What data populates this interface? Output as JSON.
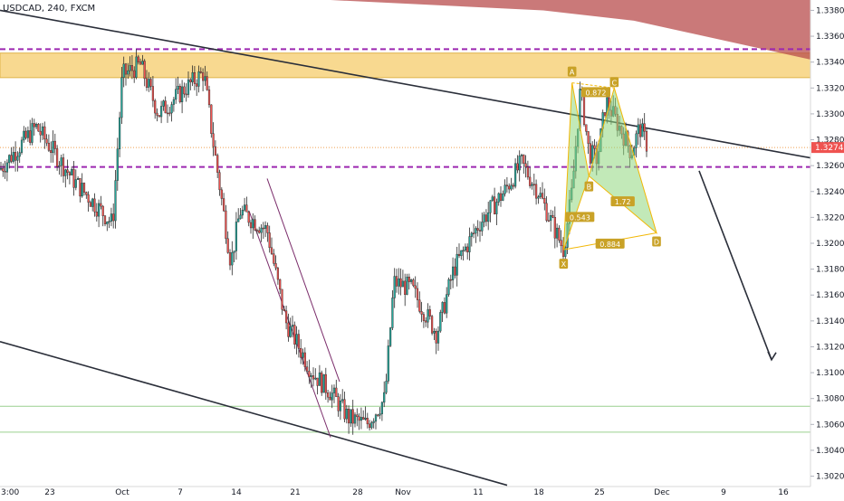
{
  "symbol_title": "USDCAD, 240, FXCM",
  "colors": {
    "up": "#26a69a",
    "down": "#ef5350",
    "candle_outline": "#2a2a2a",
    "resistance_zone": "#f7d27d",
    "red_zone": "#b84c4c",
    "purple_line": "#9c27b0",
    "green_line": "#9ad08f",
    "pattern_fill": "#8fd77d",
    "pattern_stroke": "#f2b705",
    "label_bg": "#c9a227",
    "price_badge": "#ef5350",
    "trend_line": "#2a2e39",
    "channel_line": "#7b2d6b"
  },
  "chart_data": {
    "type": "candlestick",
    "title": "USDCAD, 240, FXCM",
    "y_axis_side": "right",
    "ylim": [
      1.3012,
      1.3388
    ],
    "yticks": [
      "1.33800",
      "1.33600",
      "1.33400",
      "1.33200",
      "1.33000",
      "1.32800",
      "1.32600",
      "1.32400",
      "1.32200",
      "1.32000",
      "1.31800",
      "1.31600",
      "1.31400",
      "1.31200",
      "1.31000",
      "1.30800",
      "1.30600",
      "1.30400",
      "1.30200"
    ],
    "xticks": [
      "3:00",
      "23",
      "Oct",
      "7",
      "14",
      "21",
      "28",
      "Nov",
      "11",
      "18",
      "25",
      "Dec",
      "9",
      "16"
    ],
    "current_price": "1.32740",
    "price_path": [
      {
        "date": "Sep 18",
        "price": 1.3255
      },
      {
        "date": "Sep 22",
        "price": 1.329
      },
      {
        "date": "Sep 26",
        "price": 1.3248
      },
      {
        "date": "Sep 30",
        "price": 1.3215
      },
      {
        "date": "Oct 1",
        "price": 1.333
      },
      {
        "date": "Oct 3",
        "price": 1.3338
      },
      {
        "date": "Oct 5",
        "price": 1.33
      },
      {
        "date": "Oct 8",
        "price": 1.332
      },
      {
        "date": "Oct 10",
        "price": 1.3332
      },
      {
        "date": "Oct 11",
        "price": 1.328
      },
      {
        "date": "Oct 13",
        "price": 1.3185
      },
      {
        "date": "Oct 14",
        "price": 1.3225
      },
      {
        "date": "Oct 17",
        "price": 1.321
      },
      {
        "date": "Oct 19",
        "price": 1.314
      },
      {
        "date": "Oct 22",
        "price": 1.31
      },
      {
        "date": "Oct 24",
        "price": 1.3085
      },
      {
        "date": "Oct 26",
        "price": 1.3065
      },
      {
        "date": "Oct 28",
        "price": 1.306
      },
      {
        "date": "Oct 30",
        "price": 1.308
      },
      {
        "date": "Oct 31",
        "price": 1.317
      },
      {
        "date": "Nov 2",
        "price": 1.3165
      },
      {
        "date": "Nov 5",
        "price": 1.313
      },
      {
        "date": "Nov 7",
        "price": 1.318
      },
      {
        "date": "Nov 10",
        "price": 1.3215
      },
      {
        "date": "Nov 13",
        "price": 1.324
      },
      {
        "date": "Nov 15",
        "price": 1.3262
      },
      {
        "date": "Nov 17",
        "price": 1.324
      },
      {
        "date": "Nov 19",
        "price": 1.321
      },
      {
        "date": "Nov 20",
        "price": 1.3195
      },
      {
        "date": "Nov 21",
        "price": 1.324
      },
      {
        "date": "Nov 22",
        "price": 1.332
      },
      {
        "date": "Nov 23",
        "price": 1.327
      },
      {
        "date": "Nov 24",
        "price": 1.3265
      },
      {
        "date": "Nov 25",
        "price": 1.331
      },
      {
        "date": "Nov 27",
        "price": 1.3285
      },
      {
        "date": "Nov 28",
        "price": 1.327
      },
      {
        "date": "Nov 29",
        "price": 1.329
      },
      {
        "date": "Nov 30",
        "price": 1.3274
      }
    ],
    "horizontal_lines": [
      {
        "kind": "purple-dashed",
        "price": 1.335
      },
      {
        "kind": "purple-dashed",
        "price": 1.3259
      },
      {
        "kind": "green",
        "price": 1.3074
      },
      {
        "kind": "green",
        "price": 1.3054
      },
      {
        "kind": "orange-dotted",
        "price": 1.3274
      }
    ],
    "resistance_zone": {
      "from": 1.3328,
      "to": 1.3347
    },
    "harmonic_pattern": {
      "points": [
        {
          "label": "X",
          "date": "Nov 20",
          "price": 1.3195
        },
        {
          "label": "A",
          "date": "Nov 21",
          "price": 1.3324
        },
        {
          "label": "B",
          "date": "Nov 23",
          "price": 1.3252
        },
        {
          "label": "C",
          "date": "Nov 26",
          "price": 1.332
        },
        {
          "label": "D",
          "date": "Dec 1",
          "price": 1.3208
        }
      ],
      "ratios": [
        "0.872",
        "0.543",
        "1.72",
        "0.884"
      ]
    }
  }
}
